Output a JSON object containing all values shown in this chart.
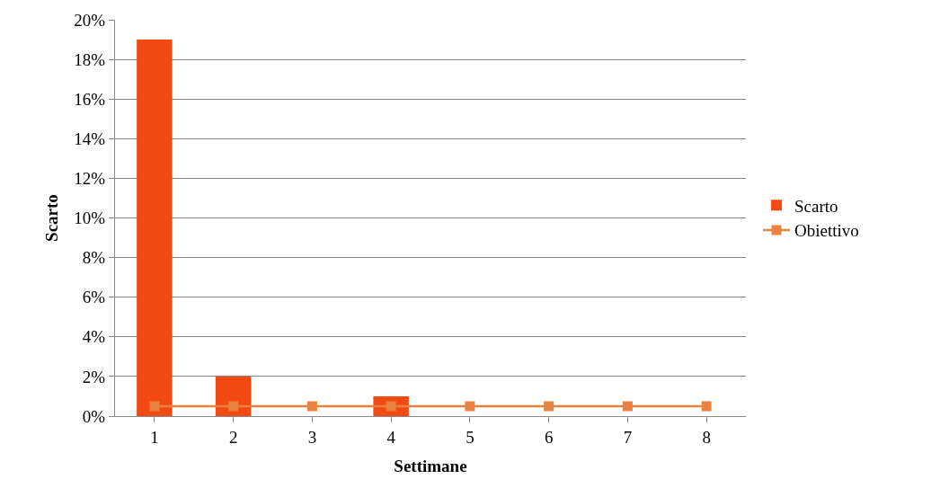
{
  "chart_data": {
    "type": "bar",
    "xlabel": "Settimane",
    "ylabel": "Scarto",
    "categories": [
      "1",
      "2",
      "3",
      "4",
      "5",
      "6",
      "7",
      "8"
    ],
    "series": [
      {
        "name": "Scarto",
        "color": "#f24a12",
        "values": [
          19,
          2,
          0,
          1,
          0,
          0,
          0,
          0
        ]
      },
      {
        "name": "Obiettivo",
        "type": "line",
        "color": "#e8823e",
        "marker": "square",
        "values": [
          0.5,
          0.5,
          0.5,
          0.5,
          0.5,
          0.5,
          0.5,
          0.5
        ]
      }
    ],
    "ylim": [
      0,
      20
    ],
    "yticks": [
      {
        "value": 0,
        "label": "0%"
      },
      {
        "value": 2,
        "label": "2%"
      },
      {
        "value": 4,
        "label": "4%"
      },
      {
        "value": 6,
        "label": "6%"
      },
      {
        "value": 8,
        "label": "8%"
      },
      {
        "value": 10,
        "label": "10%"
      },
      {
        "value": 12,
        "label": "12%"
      },
      {
        "value": 14,
        "label": "14%"
      },
      {
        "value": 16,
        "label": "16%"
      },
      {
        "value": 18,
        "label": "18%"
      },
      {
        "value": 20,
        "label": "20%"
      }
    ],
    "grid": "y",
    "legend": "right"
  }
}
